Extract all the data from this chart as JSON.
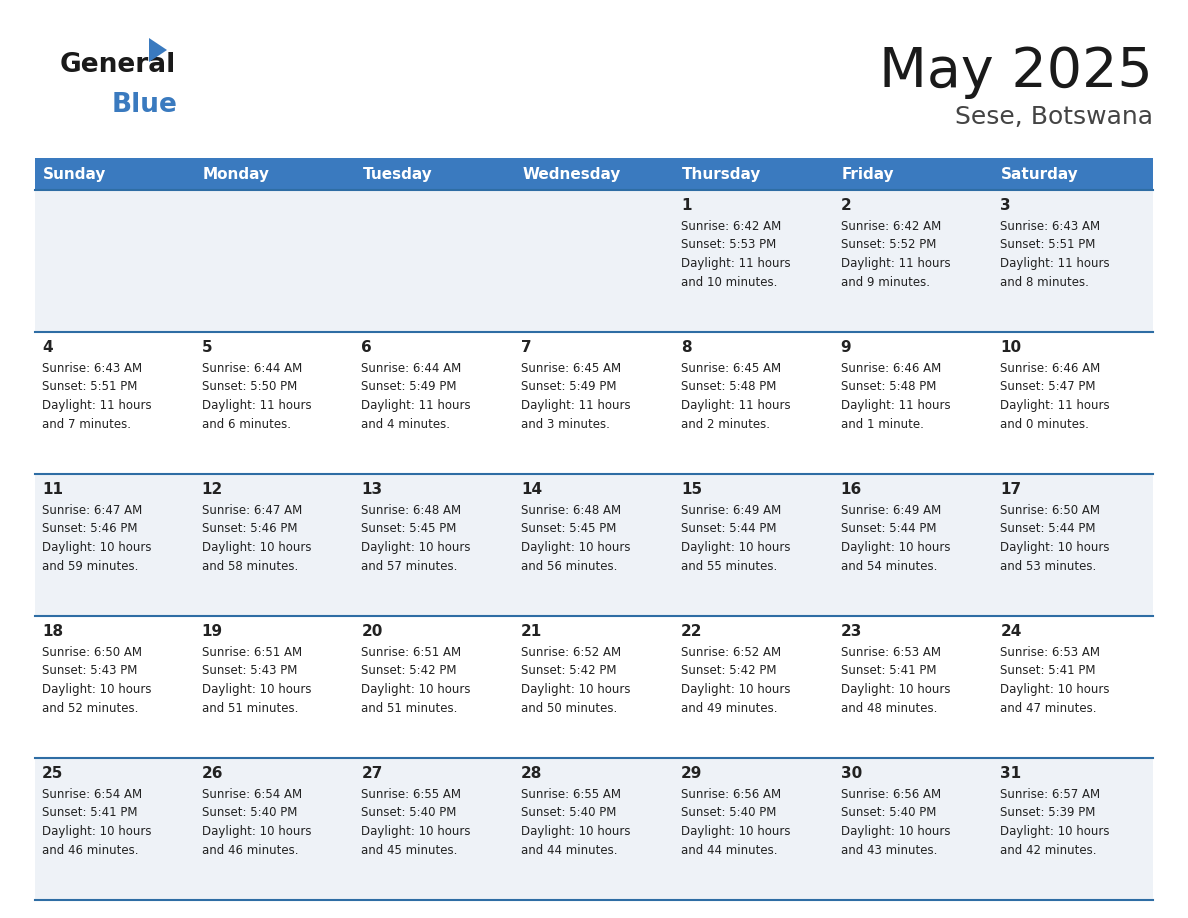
{
  "title": "May 2025",
  "subtitle": "Sese, Botswana",
  "days_of_week": [
    "Sunday",
    "Monday",
    "Tuesday",
    "Wednesday",
    "Thursday",
    "Friday",
    "Saturday"
  ],
  "header_bg": "#3a7abf",
  "header_text": "#ffffff",
  "row_bg_odd": "#eef2f7",
  "row_bg_even": "#ffffff",
  "separator_color": "#2e6da4",
  "text_color": "#222222",
  "logo_general_color": "#1a1a1a",
  "logo_blue_color": "#3a7abf",
  "subtitle_color": "#444444",
  "fig_width": 11.88,
  "fig_height": 9.18,
  "fig_dpi": 100,
  "calendar_data": [
    [
      null,
      null,
      null,
      null,
      {
        "day": 1,
        "sunrise": "6:42 AM",
        "sunset": "5:53 PM",
        "daylight": "11 hours and 10 minutes"
      },
      {
        "day": 2,
        "sunrise": "6:42 AM",
        "sunset": "5:52 PM",
        "daylight": "11 hours and 9 minutes"
      },
      {
        "day": 3,
        "sunrise": "6:43 AM",
        "sunset": "5:51 PM",
        "daylight": "11 hours and 8 minutes"
      }
    ],
    [
      {
        "day": 4,
        "sunrise": "6:43 AM",
        "sunset": "5:51 PM",
        "daylight": "11 hours and 7 minutes"
      },
      {
        "day": 5,
        "sunrise": "6:44 AM",
        "sunset": "5:50 PM",
        "daylight": "11 hours and 6 minutes"
      },
      {
        "day": 6,
        "sunrise": "6:44 AM",
        "sunset": "5:49 PM",
        "daylight": "11 hours and 4 minutes"
      },
      {
        "day": 7,
        "sunrise": "6:45 AM",
        "sunset": "5:49 PM",
        "daylight": "11 hours and 3 minutes"
      },
      {
        "day": 8,
        "sunrise": "6:45 AM",
        "sunset": "5:48 PM",
        "daylight": "11 hours and 2 minutes"
      },
      {
        "day": 9,
        "sunrise": "6:46 AM",
        "sunset": "5:48 PM",
        "daylight": "11 hours and 1 minute"
      },
      {
        "day": 10,
        "sunrise": "6:46 AM",
        "sunset": "5:47 PM",
        "daylight": "11 hours and 0 minutes"
      }
    ],
    [
      {
        "day": 11,
        "sunrise": "6:47 AM",
        "sunset": "5:46 PM",
        "daylight": "10 hours and 59 minutes"
      },
      {
        "day": 12,
        "sunrise": "6:47 AM",
        "sunset": "5:46 PM",
        "daylight": "10 hours and 58 minutes"
      },
      {
        "day": 13,
        "sunrise": "6:48 AM",
        "sunset": "5:45 PM",
        "daylight": "10 hours and 57 minutes"
      },
      {
        "day": 14,
        "sunrise": "6:48 AM",
        "sunset": "5:45 PM",
        "daylight": "10 hours and 56 minutes"
      },
      {
        "day": 15,
        "sunrise": "6:49 AM",
        "sunset": "5:44 PM",
        "daylight": "10 hours and 55 minutes"
      },
      {
        "day": 16,
        "sunrise": "6:49 AM",
        "sunset": "5:44 PM",
        "daylight": "10 hours and 54 minutes"
      },
      {
        "day": 17,
        "sunrise": "6:50 AM",
        "sunset": "5:44 PM",
        "daylight": "10 hours and 53 minutes"
      }
    ],
    [
      {
        "day": 18,
        "sunrise": "6:50 AM",
        "sunset": "5:43 PM",
        "daylight": "10 hours and 52 minutes"
      },
      {
        "day": 19,
        "sunrise": "6:51 AM",
        "sunset": "5:43 PM",
        "daylight": "10 hours and 51 minutes"
      },
      {
        "day": 20,
        "sunrise": "6:51 AM",
        "sunset": "5:42 PM",
        "daylight": "10 hours and 51 minutes"
      },
      {
        "day": 21,
        "sunrise": "6:52 AM",
        "sunset": "5:42 PM",
        "daylight": "10 hours and 50 minutes"
      },
      {
        "day": 22,
        "sunrise": "6:52 AM",
        "sunset": "5:42 PM",
        "daylight": "10 hours and 49 minutes"
      },
      {
        "day": 23,
        "sunrise": "6:53 AM",
        "sunset": "5:41 PM",
        "daylight": "10 hours and 48 minutes"
      },
      {
        "day": 24,
        "sunrise": "6:53 AM",
        "sunset": "5:41 PM",
        "daylight": "10 hours and 47 minutes"
      }
    ],
    [
      {
        "day": 25,
        "sunrise": "6:54 AM",
        "sunset": "5:41 PM",
        "daylight": "10 hours and 46 minutes"
      },
      {
        "day": 26,
        "sunrise": "6:54 AM",
        "sunset": "5:40 PM",
        "daylight": "10 hours and 46 minutes"
      },
      {
        "day": 27,
        "sunrise": "6:55 AM",
        "sunset": "5:40 PM",
        "daylight": "10 hours and 45 minutes"
      },
      {
        "day": 28,
        "sunrise": "6:55 AM",
        "sunset": "5:40 PM",
        "daylight": "10 hours and 44 minutes"
      },
      {
        "day": 29,
        "sunrise": "6:56 AM",
        "sunset": "5:40 PM",
        "daylight": "10 hours and 44 minutes"
      },
      {
        "day": 30,
        "sunrise": "6:56 AM",
        "sunset": "5:40 PM",
        "daylight": "10 hours and 43 minutes"
      },
      {
        "day": 31,
        "sunrise": "6:57 AM",
        "sunset": "5:39 PM",
        "daylight": "10 hours and 42 minutes"
      }
    ]
  ]
}
